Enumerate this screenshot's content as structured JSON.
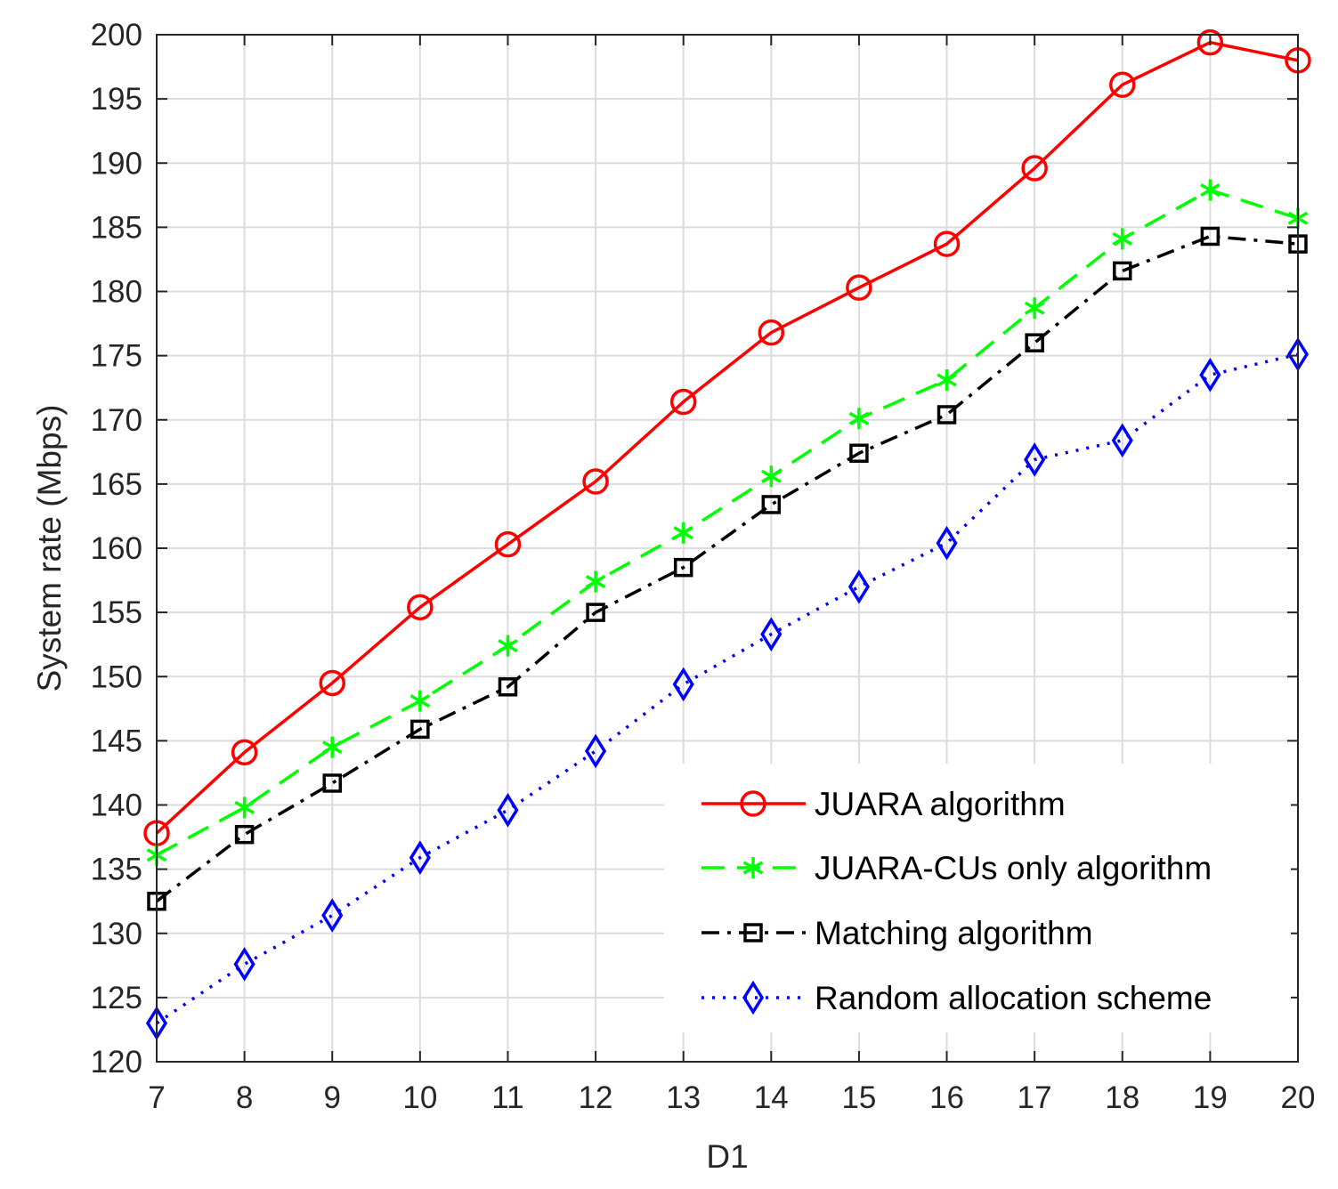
{
  "chart_data": {
    "type": "line",
    "xlabel": "D1",
    "ylabel": "System rate (Mbps)",
    "xlim": [
      7,
      20
    ],
    "ylim": [
      120,
      200
    ],
    "x": [
      7,
      8,
      9,
      10,
      11,
      12,
      13,
      14,
      15,
      16,
      17,
      18,
      19,
      20
    ],
    "xticks": [
      "7",
      "8",
      "9",
      "10",
      "11",
      "12",
      "13",
      "14",
      "15",
      "16",
      "17",
      "18",
      "19",
      "20"
    ],
    "yticks": [
      "120",
      "125",
      "130",
      "135",
      "140",
      "145",
      "150",
      "155",
      "160",
      "165",
      "170",
      "175",
      "180",
      "185",
      "190",
      "195",
      "200"
    ],
    "grid": true,
    "legend_position": "bottom-right",
    "series": [
      {
        "name": "JUARA algorithm",
        "color": "#ff0000",
        "line_style": "solid",
        "marker": "circle",
        "values": [
          137.8,
          144.1,
          149.5,
          155.4,
          160.3,
          165.2,
          171.4,
          176.8,
          180.3,
          183.7,
          189.6,
          196.1,
          199.4,
          198.0
        ]
      },
      {
        "name": "JUARA-CUs only algorithm",
        "color": "#00ff00",
        "line_style": "dashed",
        "marker": "asterisk",
        "values": [
          136.1,
          139.8,
          144.5,
          148.1,
          152.4,
          157.4,
          161.2,
          165.6,
          170.1,
          173.1,
          178.7,
          184.1,
          187.9,
          185.7
        ]
      },
      {
        "name": "Matching algorithm",
        "color": "#000000",
        "line_style": "dash-dot",
        "marker": "square",
        "values": [
          132.5,
          137.7,
          141.7,
          145.9,
          149.2,
          155.0,
          158.5,
          163.4,
          167.4,
          170.4,
          176.0,
          181.6,
          184.3,
          183.7
        ]
      },
      {
        "name": "Random allocation scheme",
        "color": "#0000ff",
        "line_style": "dotted",
        "marker": "diamond",
        "values": [
          123.0,
          127.6,
          131.4,
          135.9,
          139.6,
          144.2,
          149.4,
          153.3,
          157.0,
          160.4,
          166.9,
          168.4,
          173.5,
          175.1
        ]
      }
    ]
  }
}
